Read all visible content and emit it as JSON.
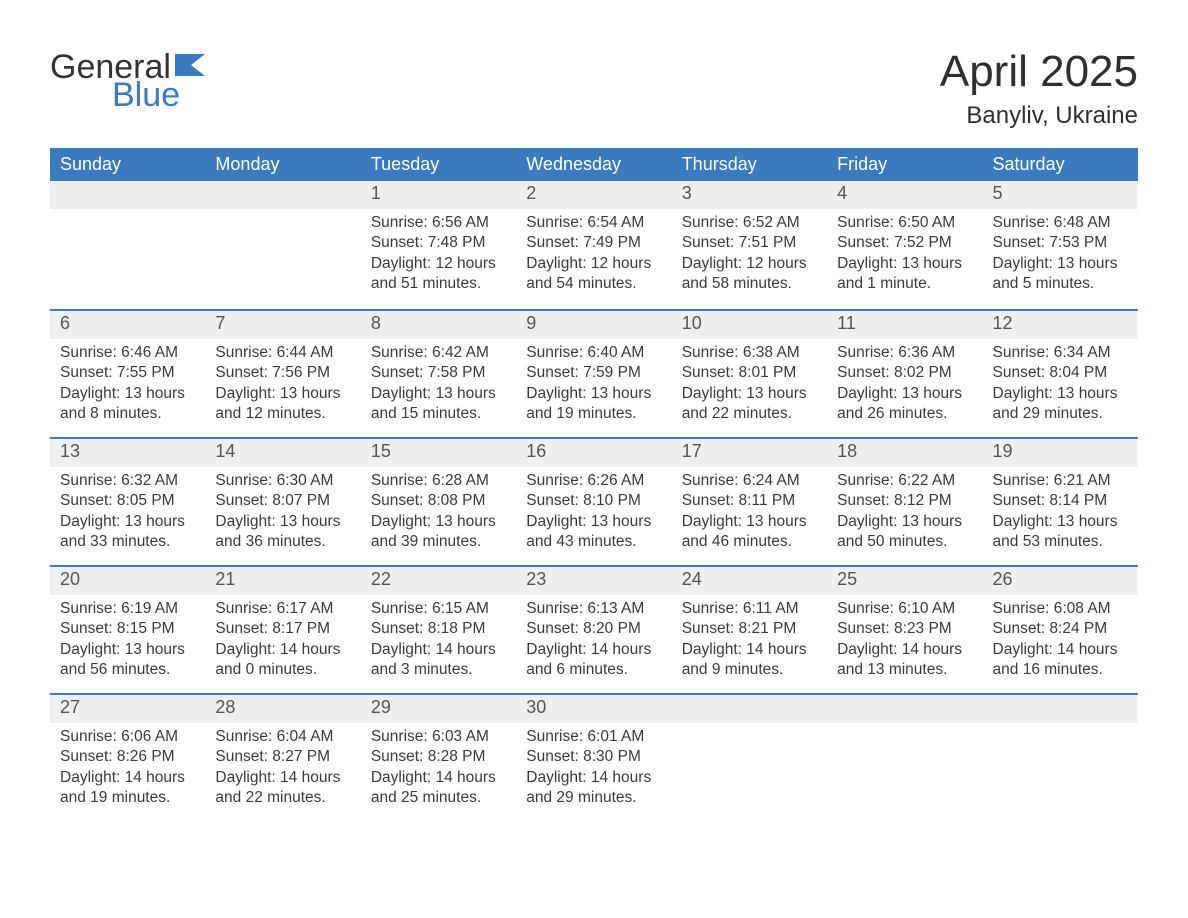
{
  "logo": {
    "word1": "General",
    "word2": "Blue"
  },
  "title": "April 2025",
  "location": "Banyliv, Ukraine",
  "colors": {
    "header_bg": "#3a7abf",
    "header_text": "#ffffff",
    "daynum_bg": "#efefef",
    "text": "#333333",
    "logo_blue": "#3a7abf"
  },
  "day_headers": [
    "Sunday",
    "Monday",
    "Tuesday",
    "Wednesday",
    "Thursday",
    "Friday",
    "Saturday"
  ],
  "weeks": [
    [
      null,
      null,
      {
        "n": "1",
        "sr": "Sunrise: 6:56 AM",
        "ss": "Sunset: 7:48 PM",
        "dl": "Daylight: 12 hours and 51 minutes."
      },
      {
        "n": "2",
        "sr": "Sunrise: 6:54 AM",
        "ss": "Sunset: 7:49 PM",
        "dl": "Daylight: 12 hours and 54 minutes."
      },
      {
        "n": "3",
        "sr": "Sunrise: 6:52 AM",
        "ss": "Sunset: 7:51 PM",
        "dl": "Daylight: 12 hours and 58 minutes."
      },
      {
        "n": "4",
        "sr": "Sunrise: 6:50 AM",
        "ss": "Sunset: 7:52 PM",
        "dl": "Daylight: 13 hours and 1 minute."
      },
      {
        "n": "5",
        "sr": "Sunrise: 6:48 AM",
        "ss": "Sunset: 7:53 PM",
        "dl": "Daylight: 13 hours and 5 minutes."
      }
    ],
    [
      {
        "n": "6",
        "sr": "Sunrise: 6:46 AM",
        "ss": "Sunset: 7:55 PM",
        "dl": "Daylight: 13 hours and 8 minutes."
      },
      {
        "n": "7",
        "sr": "Sunrise: 6:44 AM",
        "ss": "Sunset: 7:56 PM",
        "dl": "Daylight: 13 hours and 12 minutes."
      },
      {
        "n": "8",
        "sr": "Sunrise: 6:42 AM",
        "ss": "Sunset: 7:58 PM",
        "dl": "Daylight: 13 hours and 15 minutes."
      },
      {
        "n": "9",
        "sr": "Sunrise: 6:40 AM",
        "ss": "Sunset: 7:59 PM",
        "dl": "Daylight: 13 hours and 19 minutes."
      },
      {
        "n": "10",
        "sr": "Sunrise: 6:38 AM",
        "ss": "Sunset: 8:01 PM",
        "dl": "Daylight: 13 hours and 22 minutes."
      },
      {
        "n": "11",
        "sr": "Sunrise: 6:36 AM",
        "ss": "Sunset: 8:02 PM",
        "dl": "Daylight: 13 hours and 26 minutes."
      },
      {
        "n": "12",
        "sr": "Sunrise: 6:34 AM",
        "ss": "Sunset: 8:04 PM",
        "dl": "Daylight: 13 hours and 29 minutes."
      }
    ],
    [
      {
        "n": "13",
        "sr": "Sunrise: 6:32 AM",
        "ss": "Sunset: 8:05 PM",
        "dl": "Daylight: 13 hours and 33 minutes."
      },
      {
        "n": "14",
        "sr": "Sunrise: 6:30 AM",
        "ss": "Sunset: 8:07 PM",
        "dl": "Daylight: 13 hours and 36 minutes."
      },
      {
        "n": "15",
        "sr": "Sunrise: 6:28 AM",
        "ss": "Sunset: 8:08 PM",
        "dl": "Daylight: 13 hours and 39 minutes."
      },
      {
        "n": "16",
        "sr": "Sunrise: 6:26 AM",
        "ss": "Sunset: 8:10 PM",
        "dl": "Daylight: 13 hours and 43 minutes."
      },
      {
        "n": "17",
        "sr": "Sunrise: 6:24 AM",
        "ss": "Sunset: 8:11 PM",
        "dl": "Daylight: 13 hours and 46 minutes."
      },
      {
        "n": "18",
        "sr": "Sunrise: 6:22 AM",
        "ss": "Sunset: 8:12 PM",
        "dl": "Daylight: 13 hours and 50 minutes."
      },
      {
        "n": "19",
        "sr": "Sunrise: 6:21 AM",
        "ss": "Sunset: 8:14 PM",
        "dl": "Daylight: 13 hours and 53 minutes."
      }
    ],
    [
      {
        "n": "20",
        "sr": "Sunrise: 6:19 AM",
        "ss": "Sunset: 8:15 PM",
        "dl": "Daylight: 13 hours and 56 minutes."
      },
      {
        "n": "21",
        "sr": "Sunrise: 6:17 AM",
        "ss": "Sunset: 8:17 PM",
        "dl": "Daylight: 14 hours and 0 minutes."
      },
      {
        "n": "22",
        "sr": "Sunrise: 6:15 AM",
        "ss": "Sunset: 8:18 PM",
        "dl": "Daylight: 14 hours and 3 minutes."
      },
      {
        "n": "23",
        "sr": "Sunrise: 6:13 AM",
        "ss": "Sunset: 8:20 PM",
        "dl": "Daylight: 14 hours and 6 minutes."
      },
      {
        "n": "24",
        "sr": "Sunrise: 6:11 AM",
        "ss": "Sunset: 8:21 PM",
        "dl": "Daylight: 14 hours and 9 minutes."
      },
      {
        "n": "25",
        "sr": "Sunrise: 6:10 AM",
        "ss": "Sunset: 8:23 PM",
        "dl": "Daylight: 14 hours and 13 minutes."
      },
      {
        "n": "26",
        "sr": "Sunrise: 6:08 AM",
        "ss": "Sunset: 8:24 PM",
        "dl": "Daylight: 14 hours and 16 minutes."
      }
    ],
    [
      {
        "n": "27",
        "sr": "Sunrise: 6:06 AM",
        "ss": "Sunset: 8:26 PM",
        "dl": "Daylight: 14 hours and 19 minutes."
      },
      {
        "n": "28",
        "sr": "Sunrise: 6:04 AM",
        "ss": "Sunset: 8:27 PM",
        "dl": "Daylight: 14 hours and 22 minutes."
      },
      {
        "n": "29",
        "sr": "Sunrise: 6:03 AM",
        "ss": "Sunset: 8:28 PM",
        "dl": "Daylight: 14 hours and 25 minutes."
      },
      {
        "n": "30",
        "sr": "Sunrise: 6:01 AM",
        "ss": "Sunset: 8:30 PM",
        "dl": "Daylight: 14 hours and 29 minutes."
      },
      null,
      null,
      null
    ]
  ]
}
